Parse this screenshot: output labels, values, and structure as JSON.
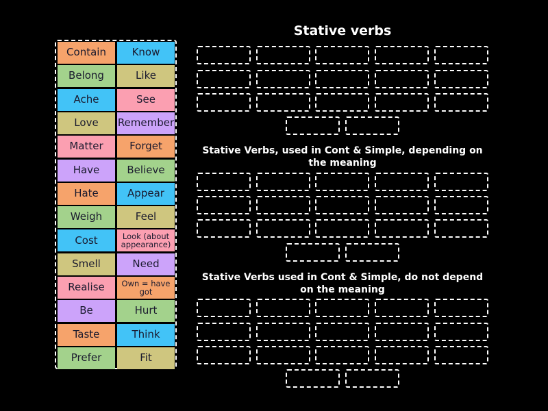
{
  "colors": {
    "orange": "#f6a36b",
    "blue": "#42c3f7",
    "green": "#a3d28c",
    "olive": "#cfc67f",
    "pink": "#fb9fb1",
    "purple": "#cca3fa",
    "background": "#000000"
  },
  "tiles": [
    {
      "label": "Contain",
      "color": "orange"
    },
    {
      "label": "Know",
      "color": "blue"
    },
    {
      "label": "Belong",
      "color": "green"
    },
    {
      "label": "Like",
      "color": "olive"
    },
    {
      "label": "Ache",
      "color": "blue"
    },
    {
      "label": "See",
      "color": "pink"
    },
    {
      "label": "Love",
      "color": "olive"
    },
    {
      "label": "Remember",
      "color": "purple"
    },
    {
      "label": "Matter",
      "color": "pink"
    },
    {
      "label": "Forget",
      "color": "orange"
    },
    {
      "label": "Have",
      "color": "purple"
    },
    {
      "label": "Believe",
      "color": "green"
    },
    {
      "label": "Hate",
      "color": "orange"
    },
    {
      "label": "Appear",
      "color": "blue"
    },
    {
      "label": "Weigh",
      "color": "green"
    },
    {
      "label": "Feel",
      "color": "olive"
    },
    {
      "label": "Cost",
      "color": "blue"
    },
    {
      "label": "Look (about appearance)",
      "color": "pink",
      "small": true
    },
    {
      "label": "Smell",
      "color": "olive"
    },
    {
      "label": "Need",
      "color": "purple"
    },
    {
      "label": "Realise",
      "color": "pink"
    },
    {
      "label": "Own = have got",
      "color": "orange",
      "small": true
    },
    {
      "label": "Be",
      "color": "purple"
    },
    {
      "label": "Hurt",
      "color": "green"
    },
    {
      "label": "Taste",
      "color": "orange"
    },
    {
      "label": "Think",
      "color": "blue"
    },
    {
      "label": "Prefer",
      "color": "green"
    },
    {
      "label": "Fit",
      "color": "olive"
    }
  ],
  "groups": [
    {
      "title": "Stative verbs",
      "slots": 17
    },
    {
      "title": "Stative Verbs, used in Cont & Simple, depending on the meaning",
      "slots": 17
    },
    {
      "title": "Stative Verbs used in Cont & Simple, do not depend on the meaning",
      "slots": 17
    }
  ]
}
